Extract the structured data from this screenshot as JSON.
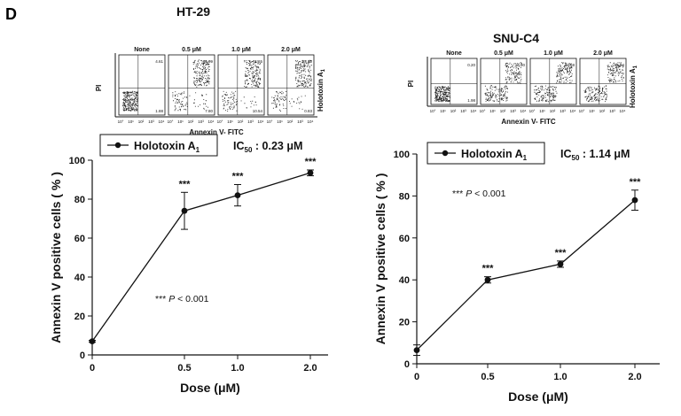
{
  "panel_label": "D",
  "facs": [
    {
      "title": "HT-29",
      "conditions": [
        "None",
        "0.5 μM",
        "1.0 μM",
        "2.0 μM"
      ],
      "y_axis": "PI",
      "x_axis": "Annexin V- FITC",
      "side_label_base": "Holotoxin A",
      "side_label_sub": "1",
      "quadrant_values": [
        {
          "ur": "4.61",
          "lr": "1.88"
        },
        {
          "ur": "66.09",
          "lr": "7.80"
        },
        {
          "ur": "71.65",
          "lr": "10.54"
        },
        {
          "ur": "93.52",
          "lr": "0.83"
        }
      ]
    },
    {
      "title": "SNU-C4",
      "conditions": [
        "None",
        "0.5 μM",
        "1.0 μM",
        "2.0 μM"
      ],
      "y_axis": "PI",
      "x_axis": "Annexin V- FITC",
      "side_label_base": "Holotoxin A",
      "side_label_sub": "1",
      "quadrant_values": [
        {
          "ur": "0.20",
          "lr": "1.98"
        },
        {
          "ur": "14.90",
          "lr": ""
        },
        {
          "ur": "23.58",
          "lr": ""
        },
        {
          "ur": "66.54",
          "lr": ""
        }
      ]
    }
  ],
  "chart_data": [
    {
      "type": "line",
      "title": "",
      "xlabel": "Dose (μM)",
      "ylabel": "Annexin V positive cells ( % )",
      "categories": [
        "0",
        "0.5",
        "1.0",
        "2.0"
      ],
      "x": [
        0,
        0.5,
        1.0,
        2.0
      ],
      "series": [
        {
          "name": "Holotoxin A1",
          "values": [
            7,
            74,
            82,
            93.5
          ],
          "errors": [
            0.5,
            9.5,
            5.5,
            1.5
          ]
        }
      ],
      "significance": [
        "",
        "***",
        "***",
        "***"
      ],
      "ylim": [
        0,
        100
      ],
      "yticks": [
        0,
        20,
        40,
        60,
        80,
        100
      ],
      "legend_base": "Holotoxin A",
      "legend_sub": "1",
      "ic50_label": "IC",
      "ic50_sub": "50",
      "ic50_value": " : 0.23 μM",
      "pvalue_prefix": "*** ",
      "pvalue_italic": "P",
      "pvalue_suffix": " < 0.001",
      "grid": false
    },
    {
      "type": "line",
      "title": "",
      "xlabel": "Dose (μM)",
      "ylabel": "Annexin V positive cells ( % )",
      "categories": [
        "0",
        "0.5",
        "1.0",
        "2.0"
      ],
      "x": [
        0,
        0.5,
        1.0,
        2.0
      ],
      "series": [
        {
          "name": "Holotoxin A1",
          "values": [
            6.5,
            40,
            47.5,
            78
          ],
          "errors": [
            2.5,
            1.5,
            1.5,
            4.8
          ]
        }
      ],
      "significance": [
        "",
        "***",
        "***",
        "***"
      ],
      "ylim": [
        0,
        100
      ],
      "yticks": [
        0,
        20,
        40,
        60,
        80,
        100
      ],
      "legend_base": "Holotoxin A",
      "legend_sub": "1",
      "ic50_label": "IC",
      "ic50_sub": "50",
      "ic50_value": " : 1.14 μM",
      "pvalue_prefix": "*** ",
      "pvalue_italic": "P",
      "pvalue_suffix": " < 0.001",
      "grid": false
    }
  ],
  "colors": {
    "ink": "#111111",
    "dots": "#222222",
    "background": "#ffffff"
  }
}
